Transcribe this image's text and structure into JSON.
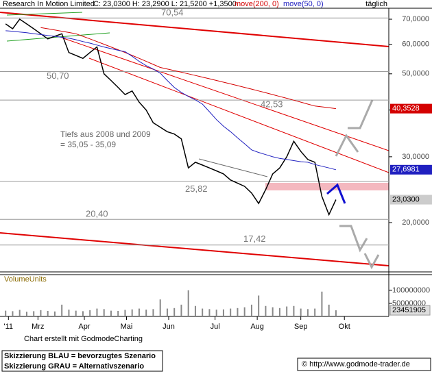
{
  "chart_data": {
    "type": "line",
    "interval": "täglich",
    "log": true,
    "quote": "C: 23,0300 H: 23,2900 L: 21,5200 +1,3500",
    "ylim": [
      14.76,
      74.9
    ],
    "yticks": [
      {
        "value": 20,
        "label": "20,0000"
      },
      {
        "value": 30,
        "label": "30,0000"
      },
      {
        "value": 40,
        "label": "40,0000"
      },
      {
        "value": 50,
        "label": "50,0000"
      },
      {
        "value": 60,
        "label": "60,0000"
      },
      {
        "value": 70,
        "label": "70,0000"
      }
    ],
    "xlim": [
      -4,
      272.6
    ],
    "xticks": [
      {
        "value": 2,
        "label": "'11"
      },
      {
        "value": 23,
        "label": "Mrz"
      },
      {
        "value": 56,
        "label": "Apr"
      },
      {
        "value": 86,
        "label": "Mai"
      },
      {
        "value": 116,
        "label": "Jun"
      },
      {
        "value": 149,
        "label": "Jul"
      },
      {
        "value": 179,
        "label": "Aug"
      },
      {
        "value": 210,
        "label": "Sep"
      },
      {
        "value": 241,
        "label": "Okt"
      }
    ],
    "x": [
      0,
      5,
      10,
      15,
      20,
      25,
      30,
      35,
      40,
      45,
      50,
      55,
      60,
      65,
      70,
      75,
      80,
      85,
      90,
      95,
      100,
      105,
      110,
      115,
      120,
      125,
      130,
      135,
      140,
      145,
      150,
      155,
      160,
      165,
      170,
      175,
      180,
      185,
      190,
      195,
      200,
      205,
      210,
      215,
      220,
      225,
      230,
      235
    ],
    "series": [
      {
        "name": "Research In Motion Limited",
        "color": "#000000",
        "values": [
          68,
          66,
          70,
          68,
          66,
          64,
          62,
          63,
          64,
          57,
          56,
          55,
          57,
          59,
          50,
          48,
          46,
          44,
          45,
          42,
          40,
          37,
          36,
          35,
          34.5,
          33.5,
          28,
          29,
          28.5,
          28,
          27.5,
          27,
          26,
          25.5,
          25,
          24,
          22.5,
          24.5,
          27,
          28,
          30,
          33,
          31,
          29.5,
          29,
          23.5,
          21,
          23.03
        ]
      },
      {
        "name": "move(200, 0)",
        "color": "#d40000",
        "values": [
          null,
          null,
          null,
          null,
          null,
          66.5,
          66,
          65.5,
          65,
          64.5,
          64,
          63,
          62,
          61,
          60,
          59,
          58,
          57,
          56,
          55,
          54,
          53,
          52,
          51.5,
          51,
          50.5,
          50,
          49.5,
          49,
          48.5,
          48,
          47.5,
          47,
          46.5,
          46,
          45.5,
          45,
          44.5,
          44,
          43.5,
          43,
          42.5,
          42,
          41.5,
          41,
          40.8,
          40.6,
          40.3528
        ]
      },
      {
        "name": "move(50, 0)",
        "color": "#2020c0",
        "values": [
          65.2,
          65,
          64.7,
          64.4,
          64,
          63.7,
          63.3,
          63,
          62.6,
          62.3,
          61.7,
          61,
          60.4,
          59.7,
          59,
          58.4,
          57.8,
          57.3,
          55.7,
          54,
          52.6,
          51.5,
          50.2,
          48,
          46,
          44.6,
          43.5,
          42.6,
          41.5,
          39.6,
          37.7,
          36.2,
          35,
          33.7,
          32.5,
          31.3,
          30.8,
          30.4,
          30,
          29.7,
          29.5,
          29.3,
          29.1,
          29,
          28.6,
          28.3,
          28,
          27.6981
        ]
      }
    ],
    "last_labels": [
      {
        "value": 40.3528,
        "label": "40,3528"
      },
      {
        "value": 27.6981,
        "label": "27,6981"
      },
      {
        "value": 23.03,
        "label": "23,0300"
      }
    ],
    "levels": [
      {
        "value": 70.54,
        "label": "70,54"
      },
      {
        "value": 50.7,
        "label": "50,70"
      },
      {
        "value": 42.53,
        "label": "42,53"
      },
      {
        "value": 25.82,
        "label": "25,82"
      },
      {
        "value": 20.4,
        "label": "20,40"
      },
      {
        "value": 17.42,
        "label": "17,42"
      }
    ],
    "annotation": [
      "Tiefs aus 2008 und 2009",
      "=  35,05 - 35,09"
    ],
    "volume": {
      "name": "VolumeUnits",
      "color": "#888888",
      "ylim": [
        0,
        160000000
      ],
      "yticks": [
        50000000,
        100000000
      ],
      "values": [
        22000000,
        20000000,
        25000000,
        18000000,
        20000000,
        24000000,
        21000000,
        19000000,
        45000000,
        26000000,
        22000000,
        20000000,
        24000000,
        30000000,
        28000000,
        22000000,
        21000000,
        25000000,
        27000000,
        30000000,
        26000000,
        28000000,
        65000000,
        30000000,
        32000000,
        45000000,
        100000000,
        40000000,
        30000000,
        28000000,
        26000000,
        27000000,
        30000000,
        32000000,
        35000000,
        45000000,
        80000000,
        40000000,
        35000000,
        32000000,
        38000000,
        40000000,
        30000000,
        28000000,
        30000000,
        95000000,
        45000000,
        23451905
      ]
    }
  },
  "footer": {
    "credit": "Chart erstellt mit GodmodeCharting",
    "legend": [
      "Skizzierung BLAU = bevorzugtes Szenario",
      "Skizzierung GRAU = Alternativszenario"
    ],
    "url": "© http://www.godmode-trader.de"
  }
}
